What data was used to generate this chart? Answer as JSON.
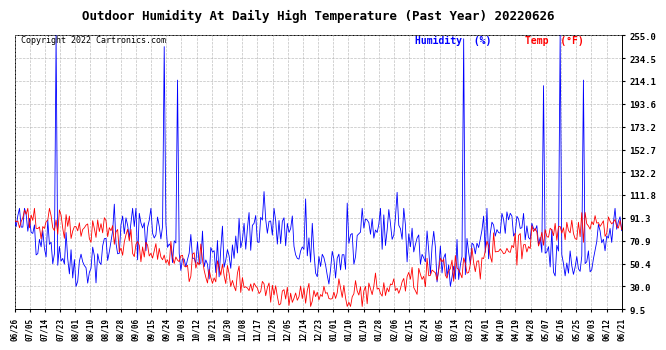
{
  "title": "Outdoor Humidity At Daily High Temperature (Past Year) 20220626",
  "copyright": "Copyright 2022 Cartronics.com",
  "legend_humidity": "Humidity  (%)",
  "legend_temp": "Temp  (°F)",
  "humidity_color": "#0000ff",
  "temp_color": "#ff0000",
  "yticks": [
    9.5,
    30.0,
    50.4,
    70.9,
    91.3,
    111.8,
    132.2,
    152.7,
    173.2,
    193.6,
    214.1,
    234.5,
    255.0
  ],
  "xtick_labels": [
    "06/26",
    "07/05",
    "07/14",
    "07/23",
    "08/01",
    "08/10",
    "08/19",
    "08/28",
    "09/06",
    "09/15",
    "09/24",
    "10/03",
    "10/12",
    "10/21",
    "10/30",
    "11/08",
    "11/17",
    "11/26",
    "12/05",
    "12/14",
    "12/23",
    "01/01",
    "01/10",
    "01/19",
    "01/28",
    "02/06",
    "02/15",
    "02/24",
    "03/05",
    "03/14",
    "03/23",
    "04/01",
    "04/10",
    "04/19",
    "04/28",
    "05/07",
    "05/16",
    "05/25",
    "06/03",
    "06/12",
    "06/21"
  ],
  "background_color": "#ffffff",
  "grid_color": "#b0b0b0",
  "ylim_min": 9.5,
  "ylim_max": 255.0,
  "n_points": 366,
  "title_fontsize": 9,
  "copyright_fontsize": 6,
  "legend_fontsize": 7,
  "ytick_fontsize": 6.5,
  "xtick_fontsize": 5.5
}
